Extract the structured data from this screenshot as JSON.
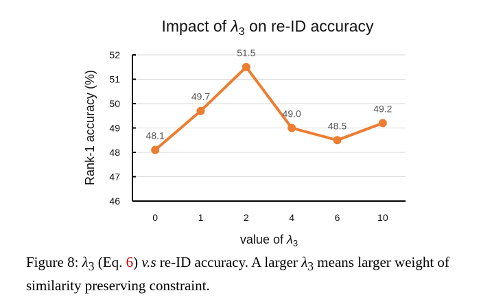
{
  "chart_data": {
    "type": "line",
    "title_prefix": "Impact of ",
    "title_symbol": "λ",
    "title_sub": "3",
    "title_suffix": " on re-ID accuracy",
    "xlabel_prefix": "value of ",
    "xlabel_symbol": "λ",
    "xlabel_sub": "3",
    "ylabel": "Rank-1 accuracy (%)",
    "categories": [
      "0",
      "1",
      "2",
      "4",
      "6",
      "10"
    ],
    "series": [
      {
        "values": [
          48.1,
          49.7,
          51.5,
          49.0,
          48.5,
          49.2
        ],
        "labels": [
          "48.1",
          "49.7",
          "51.5",
          "49.0",
          "48.5",
          "49.2"
        ]
      }
    ],
    "ylim": [
      46,
      52
    ],
    "yticks": [
      "46",
      "47",
      "48",
      "49",
      "50",
      "51",
      "52"
    ],
    "grid": true,
    "color": "#ED7D31"
  },
  "caption": {
    "fig_label": "Figure 8: ",
    "symbol": "λ",
    "sub": "3",
    "part1": " (Eq. ",
    "eq_ref": "6",
    "part2": ") ",
    "vs": "v.s",
    "part3": " re-ID accuracy. A larger ",
    "symbol2": "λ",
    "sub2": "3",
    "part4": " means larger weight of similarity preserving constraint."
  }
}
